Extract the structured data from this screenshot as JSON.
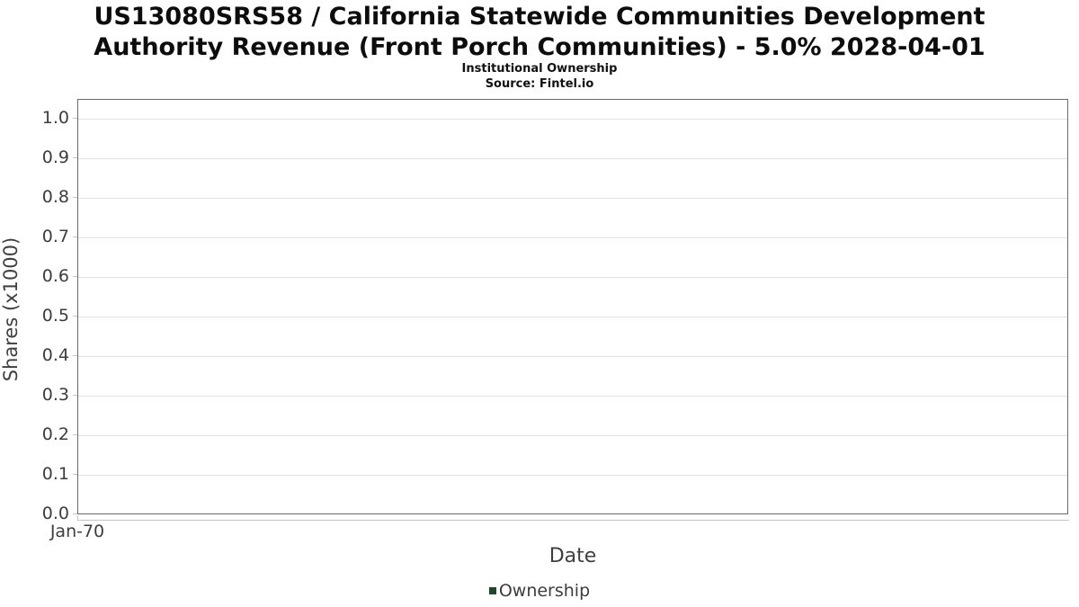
{
  "header": {
    "title": "US13080SRS58 / California Statewide Communities Development Authority Revenue (Front Porch Communities) - 5.0% 2028-04-01",
    "subtitle": "Institutional Ownership",
    "source": "Source: Fintel.io"
  },
  "chart_data": {
    "type": "line",
    "title": "US13080SRS58 / California Statewide Communities Development Authority Revenue (Front Porch Communities) - 5.0% 2028-04-01",
    "subtitle": "Institutional Ownership",
    "source": "Source: Fintel.io",
    "xlabel": "Date",
    "ylabel": "Shares (x1000)",
    "ylim": [
      0,
      1.05
    ],
    "grid": true,
    "legend_position": "bottom-center",
    "yticks": [
      {
        "value": 0.0,
        "label": "0.0"
      },
      {
        "value": 0.1,
        "label": "0.1"
      },
      {
        "value": 0.2,
        "label": "0.2"
      },
      {
        "value": 0.3,
        "label": "0.3"
      },
      {
        "value": 0.4,
        "label": "0.4"
      },
      {
        "value": 0.5,
        "label": "0.5"
      },
      {
        "value": 0.6,
        "label": "0.6"
      },
      {
        "value": 0.7,
        "label": "0.7"
      },
      {
        "value": 0.8,
        "label": "0.8"
      },
      {
        "value": 0.9,
        "label": "0.9"
      },
      {
        "value": 1.0,
        "label": "1.0"
      }
    ],
    "xticks": [
      "Jan-70"
    ],
    "series": [
      {
        "name": "Ownership",
        "color": "#1d472b",
        "x": [],
        "values": []
      }
    ]
  },
  "colors": {
    "grid": "#e2e2e2",
    "plot_border": "#6a6a6a",
    "tick": "#c6c6c6",
    "text": "#3d3d3d",
    "legend_swatch": "#1d472b"
  }
}
